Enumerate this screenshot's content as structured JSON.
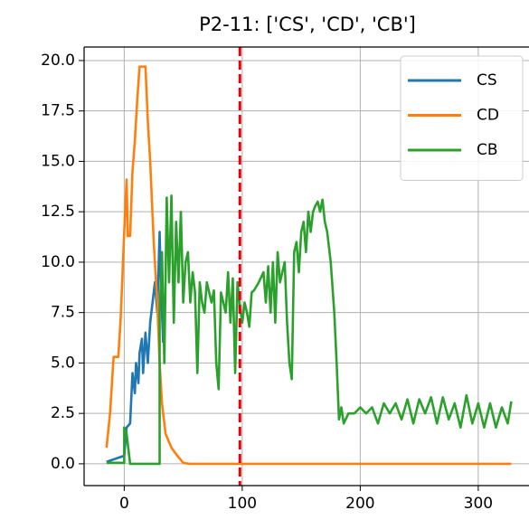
{
  "chart_data": {
    "type": "line",
    "title": "P2-11: ['CS', 'CD', 'CB']",
    "xlim": [
      -34,
      343
    ],
    "ylim": [
      -1.08,
      20.67
    ],
    "xticks": [
      0,
      100,
      200,
      300
    ],
    "yticks": [
      {
        "value": 0,
        "label": "0.0"
      },
      {
        "value": 2.5,
        "label": "2.5"
      },
      {
        "value": 5,
        "label": "5.0"
      },
      {
        "value": 7.5,
        "label": "7.5"
      },
      {
        "value": 10,
        "label": "10.0"
      },
      {
        "value": 12.5,
        "label": "12.5"
      },
      {
        "value": 15,
        "label": "15.0"
      },
      {
        "value": 17.5,
        "label": "17.5"
      },
      {
        "value": 20,
        "label": "20.0"
      }
    ],
    "grid": true,
    "legend": "upper right",
    "vlines": [
      {
        "x": 98,
        "color": "#e8000b"
      }
    ],
    "series": [
      {
        "name": "CS",
        "color": "#1f77b4",
        "x": [
          -15,
          -5,
          0,
          2,
          5,
          7,
          9,
          10,
          12,
          13,
          15,
          16,
          18,
          20,
          22,
          24,
          26,
          28,
          30,
          31,
          33
        ],
        "values": [
          0.1,
          0.3,
          0.4,
          1.8,
          2.0,
          4.5,
          3.5,
          5.0,
          4.0,
          5.5,
          6.2,
          4.5,
          6.5,
          5.0,
          7.0,
          8.0,
          9.0,
          7.5,
          11.5,
          9.0,
          6.0
        ]
      },
      {
        "name": "CD",
        "color": "#ff7f0e",
        "x": [
          -15,
          -12,
          -9,
          -5,
          -3,
          0,
          2,
          3,
          5,
          7,
          9,
          11,
          13,
          18,
          20,
          22,
          25,
          28,
          30,
          32,
          35,
          40,
          45,
          50,
          55,
          328
        ],
        "values": [
          0.8,
          2.5,
          5.3,
          5.3,
          7.2,
          11.5,
          14.1,
          11.3,
          11.3,
          14.5,
          16.0,
          18.0,
          19.7,
          19.7,
          17.0,
          15.0,
          11.0,
          8.0,
          5.0,
          3.0,
          1.5,
          0.8,
          0.4,
          0.05,
          0,
          0
        ]
      },
      {
        "name": "CB",
        "color": "#2ca02c",
        "x": [
          -15,
          0,
          0,
          2,
          4,
          5,
          30,
          30,
          32,
          34,
          36,
          38,
          40,
          42,
          44,
          46,
          48,
          50,
          52,
          54,
          56,
          58,
          60,
          62,
          64,
          66,
          68,
          70,
          72,
          74,
          76,
          78,
          80,
          82,
          84,
          86,
          88,
          90,
          92,
          94,
          96,
          98,
          100,
          102,
          104,
          106,
          108,
          110,
          114,
          118,
          120,
          122,
          124,
          126,
          128,
          130,
          132,
          134,
          136,
          138,
          140,
          142,
          144,
          146,
          148,
          150,
          152,
          154,
          156,
          158,
          160,
          162,
          164,
          166,
          168,
          170,
          172,
          175,
          178,
          180,
          182,
          184,
          186,
          190,
          195,
          200,
          205,
          210,
          215,
          220,
          225,
          230,
          235,
          240,
          245,
          250,
          255,
          260,
          265,
          270,
          275,
          280,
          285,
          290,
          295,
          300,
          305,
          310,
          315,
          320,
          325,
          328
        ],
        "values": [
          0.05,
          0.05,
          1.8,
          1.5,
          0.5,
          0,
          0,
          7.5,
          10.5,
          5,
          13.2,
          9.0,
          13.3,
          7.0,
          12.0,
          9.0,
          12.5,
          8.0,
          10.0,
          10.5,
          8.0,
          9.5,
          8.5,
          4.5,
          9.0,
          8.0,
          7.5,
          9.0,
          8.5,
          8.0,
          8.6,
          5.0,
          3.7,
          8.5,
          8.0,
          7.5,
          9.5,
          7.0,
          9.2,
          4.5,
          9.0,
          7.8,
          7.0,
          8.0,
          7.5,
          6.8,
          8.5,
          8.6,
          9.0,
          9.5,
          8.0,
          9.8,
          7.5,
          10.0,
          7.0,
          10.5,
          9.0,
          9.5,
          10.0,
          7.0,
          5.0,
          4.2,
          10.5,
          11.0,
          9.5,
          11.5,
          12.0,
          10.5,
          12.5,
          11.5,
          12.5,
          12.8,
          13.0,
          12.5,
          13.1,
          12.0,
          11.5,
          10.0,
          7.5,
          5.0,
          2.2,
          2.8,
          2.0,
          2.5,
          2.5,
          2.8,
          2.5,
          2.8,
          2.0,
          3.0,
          2.5,
          3.0,
          2.2,
          3.2,
          2.0,
          3.2,
          2.5,
          3.3,
          2.0,
          3.3,
          2.2,
          3.0,
          1.8,
          3.4,
          2.0,
          3.0,
          1.8,
          3.0,
          1.8,
          2.8,
          2.0,
          3.1
        ]
      }
    ]
  }
}
